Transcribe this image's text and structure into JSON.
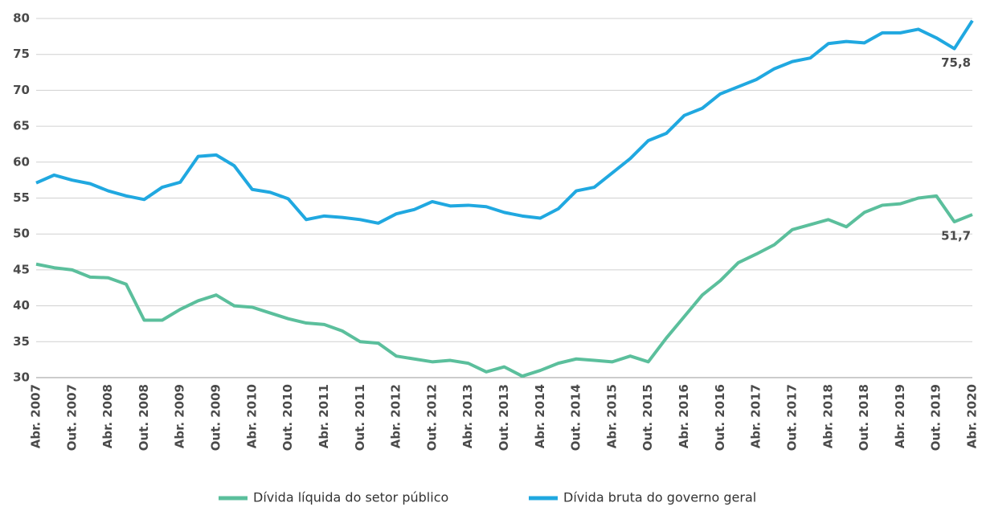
{
  "chart_data": {
    "type": "line",
    "categories": [
      "Abr. 2007",
      null,
      "Out. 2007",
      null,
      "Abr. 2008",
      null,
      "Out. 2008",
      null,
      "Abr. 2009",
      null,
      "Out. 2009",
      null,
      "Abr. 2010",
      null,
      "Out. 2010",
      null,
      "Abr. 2011",
      null,
      "Out. 2011",
      null,
      "Abr. 2012",
      null,
      "Out. 2012",
      null,
      "Abr. 2013",
      null,
      "Out. 2013",
      null,
      "Abr. 2014",
      null,
      "Out. 2014",
      null,
      "Abr. 2015",
      null,
      "Out. 2015",
      null,
      "Abr. 2016",
      null,
      "Out. 2016",
      null,
      "Abr. 2017",
      null,
      "Out. 2017",
      null,
      "Abr. 2018",
      null,
      "Out. 2018",
      null,
      "Abr. 2019",
      null,
      "Out. 2019",
      null,
      "Abr. 2020"
    ],
    "series": [
      {
        "name": "Dívida líquida do setor público",
        "color": "#5bbf9c",
        "values": [
          45.8,
          45.3,
          45.0,
          44.0,
          43.9,
          43.0,
          38.0,
          38.0,
          39.5,
          40.7,
          41.5,
          40.0,
          39.8,
          39.0,
          38.2,
          37.6,
          37.4,
          36.5,
          35.0,
          34.8,
          33.0,
          32.6,
          32.2,
          32.4,
          32.0,
          30.8,
          31.5,
          30.2,
          31.0,
          32.0,
          32.6,
          32.4,
          32.2,
          33.0,
          32.2,
          35.5,
          38.5,
          41.5,
          43.5,
          46.0,
          47.2,
          48.5,
          50.6,
          51.3,
          52.0,
          51.0,
          53.0,
          54.0,
          54.2,
          55.0,
          55.3,
          51.7,
          52.7
        ],
        "value_labels": [
          null,
          null,
          null,
          null,
          null,
          null,
          null,
          null,
          null,
          null,
          null,
          null,
          null,
          null,
          null,
          null,
          null,
          null,
          null,
          null,
          null,
          null,
          null,
          null,
          null,
          null,
          null,
          null,
          null,
          null,
          null,
          null,
          null,
          null,
          null,
          null,
          null,
          null,
          null,
          null,
          null,
          null,
          null,
          null,
          null,
          null,
          null,
          null,
          null,
          null,
          null,
          "51,7",
          null
        ]
      },
      {
        "name": "Dívida bruta do governo geral",
        "color": "#20a8e0",
        "values": [
          57.1,
          58.2,
          57.5,
          57.0,
          56.0,
          55.3,
          54.8,
          56.5,
          57.2,
          60.8,
          61.0,
          59.5,
          56.2,
          55.8,
          54.9,
          52.0,
          52.5,
          52.3,
          52.0,
          51.5,
          52.8,
          53.4,
          54.5,
          53.9,
          54.0,
          53.8,
          53.0,
          52.5,
          52.2,
          53.5,
          56.0,
          56.5,
          58.5,
          60.5,
          63.0,
          64.0,
          66.5,
          67.5,
          69.5,
          70.5,
          71.5,
          73.0,
          74.0,
          74.5,
          76.5,
          76.8,
          76.6,
          78.0,
          78.0,
          78.5,
          77.3,
          75.8,
          79.7
        ],
        "value_labels": [
          null,
          null,
          null,
          null,
          null,
          null,
          null,
          null,
          null,
          null,
          null,
          null,
          null,
          null,
          null,
          null,
          null,
          null,
          null,
          null,
          null,
          null,
          null,
          null,
          null,
          null,
          null,
          null,
          null,
          null,
          null,
          null,
          null,
          null,
          null,
          null,
          null,
          null,
          null,
          null,
          null,
          null,
          null,
          null,
          null,
          null,
          null,
          null,
          null,
          null,
          null,
          "75,8",
          null
        ]
      }
    ],
    "ylim": [
      30,
      80
    ],
    "yticks": [
      30,
      35,
      40,
      45,
      50,
      55,
      60,
      65,
      70,
      75,
      80
    ],
    "grid": true
  }
}
